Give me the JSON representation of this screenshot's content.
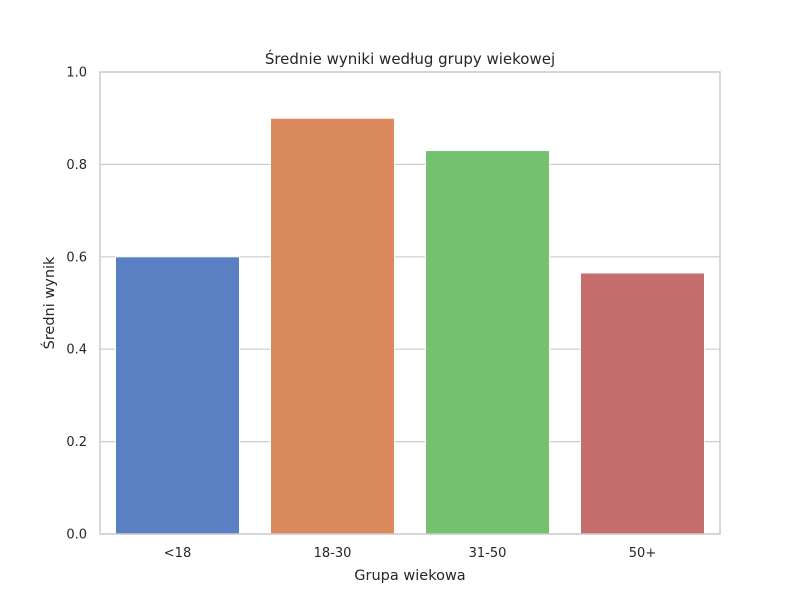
{
  "chart_data": {
    "type": "bar",
    "title": "Średnie wyniki według grupy wiekowej",
    "xlabel": "Grupa wiekowa",
    "ylabel": "Średni wynik",
    "categories": [
      "<18",
      "18-30",
      "31-50",
      "50+"
    ],
    "values": [
      0.6,
      0.9,
      0.83,
      0.565
    ],
    "ylim": [
      0,
      1.0
    ],
    "yticks": [
      "0.0",
      "0.2",
      "0.4",
      "0.6",
      "0.8",
      "1.0"
    ],
    "grid": true,
    "colors": [
      "#5a7fc2",
      "#d9895c",
      "#74c16f",
      "#c56c6d"
    ]
  }
}
